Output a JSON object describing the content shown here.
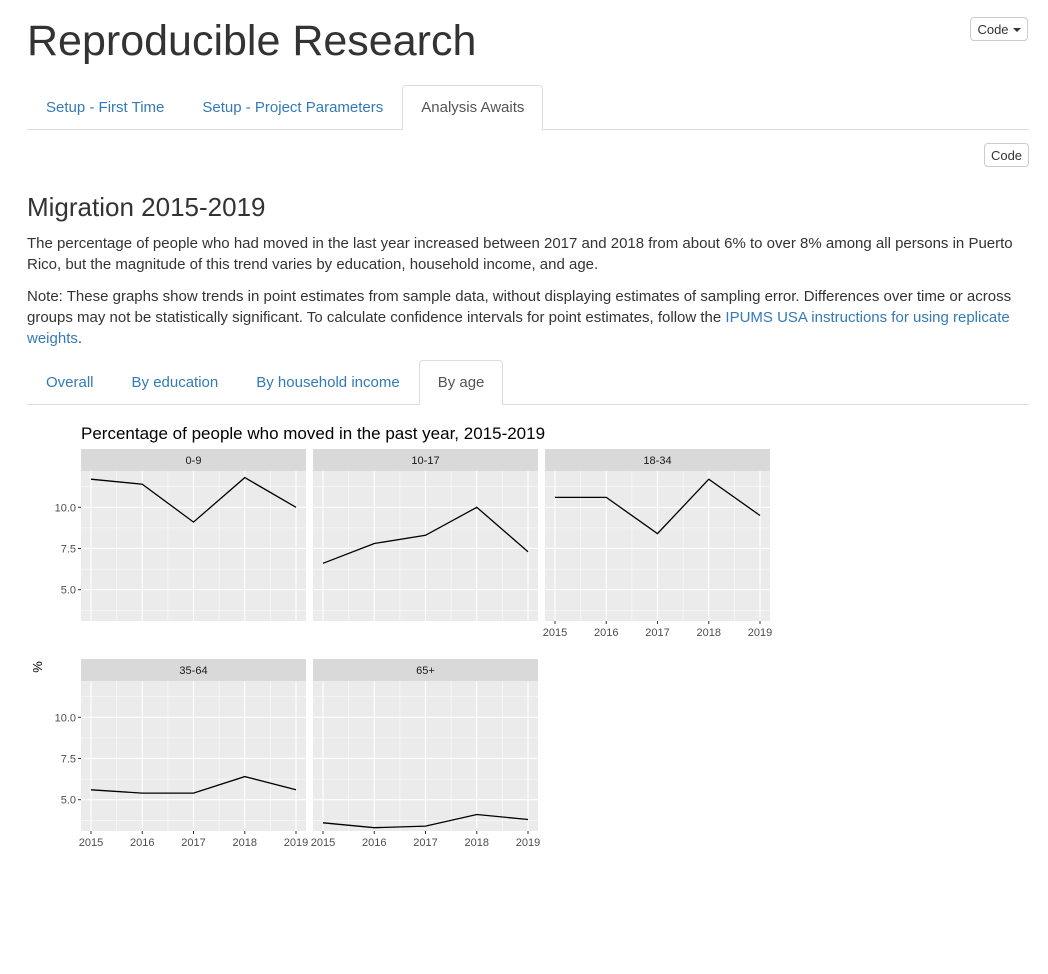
{
  "header": {
    "title": "Reproducible Research",
    "code_menu_label": "Code"
  },
  "top_tabs": [
    {
      "label": "Setup - First Time"
    },
    {
      "label": "Setup - Project Parameters"
    },
    {
      "label": "Analysis Awaits",
      "active": true
    }
  ],
  "code_button_label": "Code",
  "section": {
    "heading": "Migration 2015-2019",
    "intro": "The percentage of people who had moved in the last year increased between 2017 and 2018 from about 6% to over 8% among all persons in Puerto Rico, but the magnitude of this trend varies by education, household income, and age.",
    "note_text": "Note: These graphs show trends in point estimates from sample data, without displaying estimates of sampling error. Differences over time or across groups may not be statistically significant. To calculate confidence intervals for point estimates, follow the ",
    "note_link": "IPUMS USA instructions for using replicate weights",
    "note_end": "."
  },
  "sub_tabs": [
    {
      "label": "Overall"
    },
    {
      "label": "By education"
    },
    {
      "label": "By household income"
    },
    {
      "label": "By age",
      "active": true
    }
  ],
  "chart_data": {
    "type": "line",
    "title": "Percentage of people who moved in the past year, 2015-2019",
    "ylabel": "%",
    "xlabel": "",
    "x": [
      2015,
      2016,
      2017,
      2018,
      2019
    ],
    "x_ticks": [
      "2015",
      "2016",
      "2017",
      "2018",
      "2019"
    ],
    "ylim": [
      3.1,
      12.2
    ],
    "y_ticks": [
      "5.0",
      "7.5",
      "10.0"
    ],
    "y_tick_values": [
      5.0,
      7.5,
      10.0
    ],
    "grid": true,
    "colors": {
      "panel_bg": "#ebebeb",
      "strip_bg": "#d9d9d9",
      "line": "#000000",
      "grid": "#ffffff"
    },
    "facets": [
      {
        "name": "0-9",
        "values": [
          11.7,
          11.4,
          9.1,
          11.8,
          10.0
        ]
      },
      {
        "name": "10-17",
        "values": [
          6.6,
          7.8,
          8.3,
          10.0,
          7.3
        ]
      },
      {
        "name": "18-34",
        "values": [
          10.6,
          10.6,
          8.4,
          11.7,
          9.5
        ]
      },
      {
        "name": "35-64",
        "values": [
          5.6,
          5.4,
          5.4,
          6.4,
          5.6
        ]
      },
      {
        "name": "65+",
        "values": [
          3.6,
          3.3,
          3.4,
          4.1,
          3.8
        ]
      }
    ]
  }
}
